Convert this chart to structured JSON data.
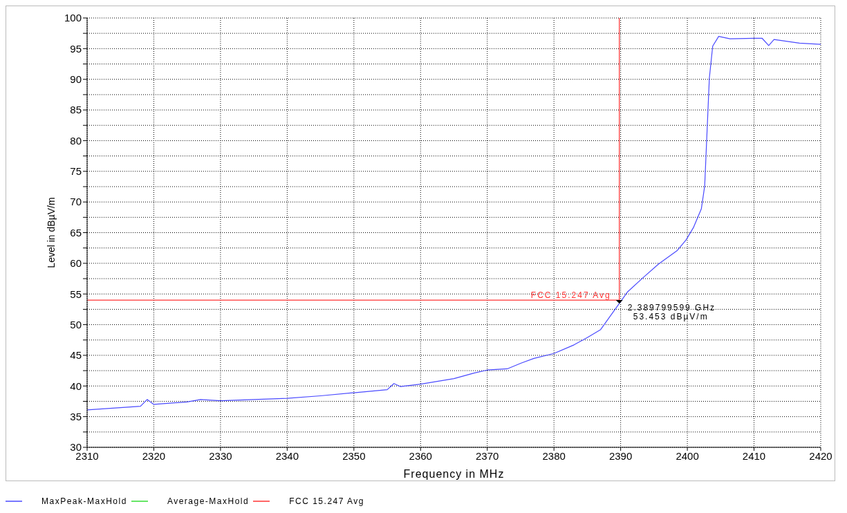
{
  "chart_data": {
    "type": "line",
    "xlabel": "Frequency in MHz",
    "ylabel": "Level in dBµV/m",
    "xlim": [
      2310,
      2420
    ],
    "xticks": [
      2310,
      2320,
      2330,
      2340,
      2350,
      2360,
      2370,
      2380,
      2390,
      2400,
      2410,
      2420
    ],
    "ylim": [
      30,
      100
    ],
    "yticks": [
      30,
      {
        "value": 32.5,
        "label": null
      },
      35,
      {
        "value": 37.5,
        "label": null
      },
      40,
      {
        "value": 42.5,
        "label": null
      },
      45,
      {
        "value": 47.5,
        "label": null
      },
      50,
      {
        "value": 52.5,
        "label": null
      },
      55,
      {
        "value": 57.5,
        "label": null
      },
      60,
      {
        "value": 62.5,
        "label": null
      },
      65,
      {
        "value": 67.5,
        "label": null
      },
      70,
      {
        "value": 72.5,
        "label": null
      },
      75,
      {
        "value": 77.5,
        "label": null
      },
      80,
      {
        "value": 82.5,
        "label": null
      },
      85,
      {
        "value": 87.5,
        "label": null
      },
      90,
      {
        "value": 92.5,
        "label": null
      },
      95,
      {
        "value": 97.5,
        "label": null
      },
      100
    ],
    "grid": true,
    "legend": "bottom",
    "marker": "none",
    "line_style": "solid",
    "series": [
      {
        "name": "MaxPeak-MaxHold",
        "color": "#4a4aff",
        "x": [
          2310,
          2318,
          2319,
          2320,
          2325,
          2327,
          2330,
          2340,
          2345,
          2350,
          2355,
          2356,
          2357,
          2360,
          2365,
          2368,
          2370,
          2373,
          2375,
          2377,
          2380,
          2383,
          2385,
          2387,
          2389.8,
          2391,
          2393.3,
          2395.7,
          2398.5,
          2399.8,
          2400.9,
          2402.1,
          2402.6,
          2402.9,
          2403.3,
          2403.8,
          2404.7,
          2406.4,
          2410,
          2411.2,
          2412.2,
          2413,
          2416.8,
          2420
        ],
        "values": [
          36.1,
          36.7,
          37.8,
          37,
          37.4,
          37.8,
          37.6,
          38,
          38.4,
          38.9,
          39.4,
          40.4,
          39.9,
          40.3,
          41.2,
          42.1,
          42.6,
          42.8,
          43.7,
          44.5,
          45.3,
          46.7,
          47.9,
          49.2,
          53.453,
          55.3,
          57.6,
          59.9,
          62.1,
          63.8,
          65.8,
          68.9,
          72.6,
          80.1,
          90.2,
          95.4,
          97,
          96.6,
          96.7,
          96.7,
          95.5,
          96.5,
          95.9,
          95.7
        ]
      },
      {
        "name": "Average-MaxHold",
        "color": "#33dd33"
      },
      {
        "name": "FCC 15.247 Avg",
        "color": "#ff3333",
        "x": [
          2310,
          2389.8,
          2389.8
        ],
        "values": [
          54,
          54,
          100
        ]
      }
    ],
    "annotations": [
      {
        "text": "2.389799599 GHz\n53.453 dBµV/m",
        "x": 2389.8,
        "y": 53.453
      }
    ]
  }
}
